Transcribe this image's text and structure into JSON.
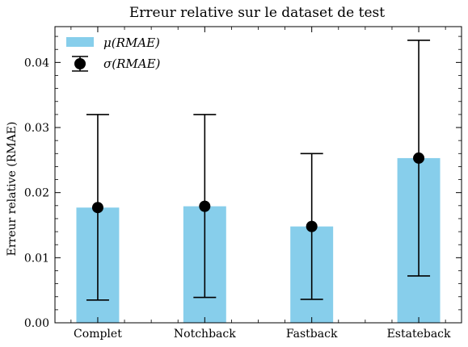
{
  "chart_data": {
    "type": "bar",
    "title": "Erreur relative sur le dataset de test",
    "xlabel": "",
    "ylabel": "Erreur relative (RMAE)",
    "categories": [
      "Complet",
      "Notchback",
      "Fastback",
      "Estateback"
    ],
    "series": [
      {
        "name": "μ(RMAE)",
        "kind": "bar",
        "values": [
          0.0177,
          0.0179,
          0.0148,
          0.0253
        ],
        "color": "#87CEEB"
      },
      {
        "name": "σ(RMAE)",
        "kind": "errorbar",
        "center": [
          0.0177,
          0.0179,
          0.0148,
          0.0253
        ],
        "lower": [
          0.0035,
          0.0039,
          0.0036,
          0.0072
        ],
        "upper": [
          0.032,
          0.032,
          0.026,
          0.0434
        ],
        "color": "#000000"
      }
    ],
    "ylim": [
      0,
      0.0455
    ],
    "yticks": [
      0.0,
      0.01,
      0.02,
      0.03,
      0.04
    ],
    "ytick_labels": [
      "0.00",
      "0.01",
      "0.02",
      "0.03",
      "0.04"
    ],
    "grid": false,
    "legend_position": "top-left"
  }
}
